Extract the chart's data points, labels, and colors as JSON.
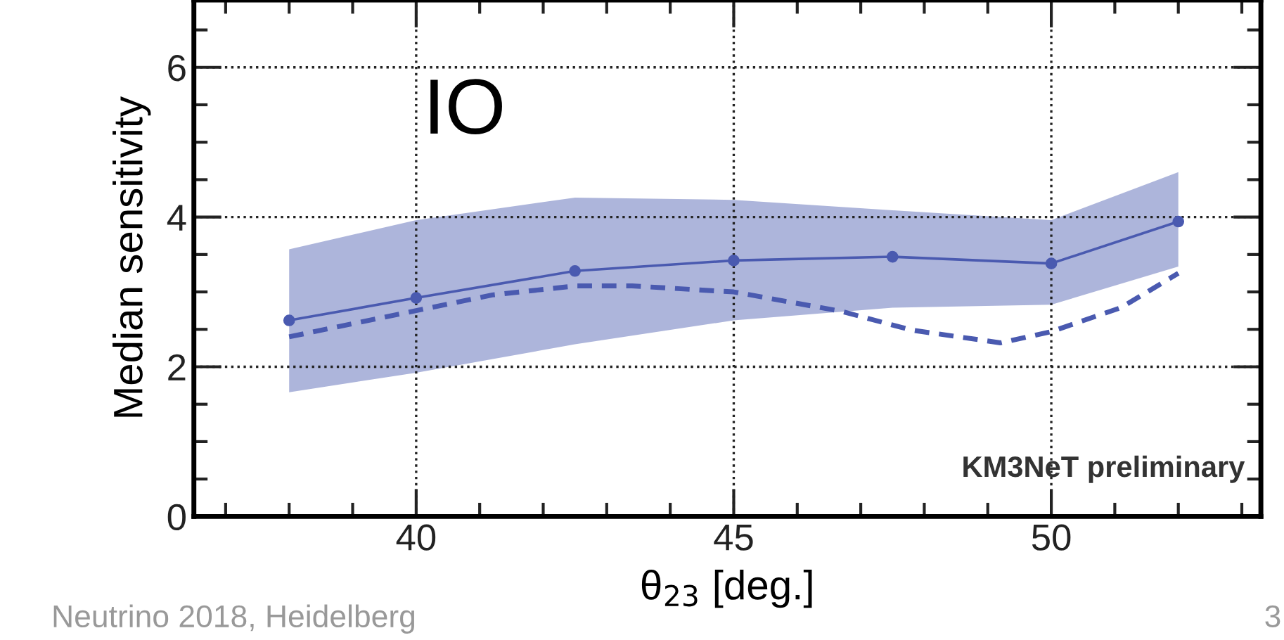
{
  "chart_data": {
    "type": "line",
    "xlabel": "θ$_{23}$ [deg.]",
    "ylabel": "Median sensitivity",
    "xlim": [
      36.5,
      53.3
    ],
    "ylim": [
      0,
      6.9
    ],
    "xticks": [
      40,
      45,
      50
    ],
    "yticks": [
      0,
      2,
      4,
      6
    ],
    "grid": true,
    "legend": false,
    "series": [
      {
        "color": "#4a5ab0",
        "marker": "circle",
        "line_style": "solid",
        "x": [
          38,
          40,
          42.5,
          45,
          47.5,
          50,
          52
        ],
        "values": [
          2.62,
          2.92,
          3.28,
          3.42,
          3.47,
          3.38,
          3.94
        ],
        "lower": [
          1.66,
          1.92,
          2.3,
          2.62,
          2.79,
          2.83,
          3.34
        ],
        "upper": [
          3.57,
          3.96,
          4.26,
          4.23,
          4.09,
          3.96,
          4.6
        ]
      },
      {
        "color": "#4a5ab0",
        "marker": "none",
        "line_style": "dashed",
        "x": [
          38,
          40,
          41.2,
          42.5,
          43.4,
          45,
          46.7,
          47.8,
          49.2,
          50,
          51.1,
          52
        ],
        "values": [
          2.4,
          2.75,
          2.96,
          3.08,
          3.08,
          3.0,
          2.74,
          2.49,
          2.32,
          2.47,
          2.79,
          3.25
        ]
      }
    ],
    "annotations": [
      "IO",
      "KM3NeT preliminary",
      "Neutrino 2018, Heidelberg",
      "3"
    ]
  }
}
